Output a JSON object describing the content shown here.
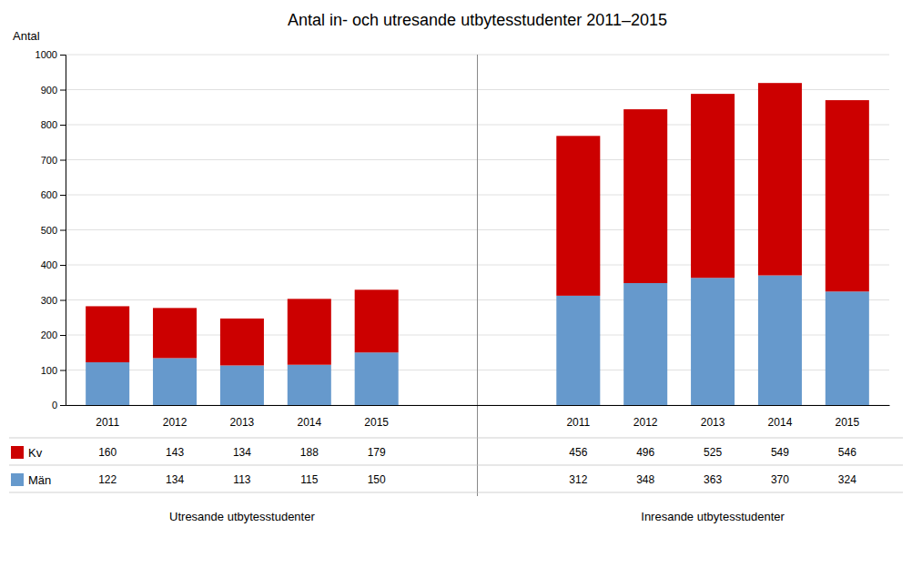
{
  "chart_data": {
    "type": "bar",
    "title": "Antal in- och utresande utbytesstudenter 2011–2015",
    "y_label": "Antal",
    "categories": [
      "2011",
      "2012",
      "2013",
      "2014",
      "2015",
      "2011",
      "2012",
      "2013",
      "2014",
      "2015"
    ],
    "series": [
      {
        "name": "Män",
        "color": "#6699CC",
        "values": [
          122,
          134,
          113,
          115,
          150,
          312,
          348,
          363,
          370,
          324
        ]
      },
      {
        "name": "Kv",
        "color": "#CC0000",
        "values": [
          160,
          143,
          134,
          188,
          179,
          456,
          496,
          525,
          549,
          546
        ]
      }
    ],
    "annotations": [
      "Utresande utbytesstudenter",
      "Inresande utbytesstudenter"
    ],
    "stacked": true,
    "data_labels": true,
    "legend": "bottom",
    "grid": true,
    "ylim": [
      0,
      1000
    ],
    "yticks": [
      0,
      100,
      200,
      300,
      400,
      500,
      600,
      700,
      800,
      900,
      1000
    ]
  }
}
